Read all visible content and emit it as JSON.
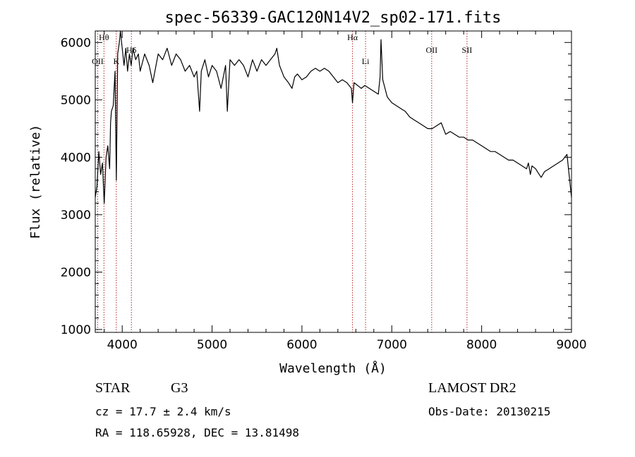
{
  "chart_data": {
    "type": "line",
    "title": "spec-56339-GAC120N14V2_sp02-171.fits",
    "xlabel": "Wavelength (Å)",
    "ylabel": "Flux (relative)",
    "xlim": [
      3700,
      9000
    ],
    "ylim": [
      950,
      6200
    ],
    "x_ticks": [
      4000,
      5000,
      6000,
      7000,
      8000,
      9000
    ],
    "y_ticks": [
      1000,
      2000,
      3000,
      4000,
      5000,
      6000
    ],
    "grid": false,
    "series": [
      {
        "color": "#000000",
        "x": [
          3700,
          3720,
          3740,
          3760,
          3780,
          3800,
          3820,
          3840,
          3860,
          3870,
          3880,
          3900,
          3920,
          3935,
          3950,
          3968,
          3980,
          4000,
          4020,
          4040,
          4060,
          4080,
          4100,
          4120,
          4150,
          4180,
          4200,
          4250,
          4300,
          4340,
          4400,
          4450,
          4500,
          4550,
          4600,
          4650,
          4700,
          4750,
          4800,
          4830,
          4861,
          4880,
          4920,
          4960,
          5000,
          5050,
          5100,
          5150,
          5170,
          5200,
          5250,
          5300,
          5350,
          5400,
          5450,
          5500,
          5550,
          5600,
          5650,
          5700,
          5720,
          5750,
          5800,
          5850,
          5890,
          5920,
          5950,
          6000,
          6050,
          6100,
          6150,
          6200,
          6250,
          6300,
          6350,
          6400,
          6450,
          6500,
          6550,
          6563,
          6580,
          6620,
          6660,
          6700,
          6750,
          6800,
          6850,
          6870,
          6880,
          6900,
          6950,
          7000,
          7050,
          7100,
          7150,
          7200,
          7250,
          7300,
          7350,
          7400,
          7450,
          7500,
          7550,
          7600,
          7650,
          7700,
          7750,
          7800,
          7850,
          7900,
          7950,
          8000,
          8050,
          8100,
          8150,
          8200,
          8250,
          8300,
          8350,
          8400,
          8450,
          8500,
          8520,
          8542,
          8560,
          8600,
          8620,
          8662,
          8700,
          8750,
          8800,
          8850,
          8900,
          8950,
          9000
        ],
        "y": [
          3300,
          3500,
          4100,
          3700,
          3900,
          3200,
          4000,
          4200,
          3800,
          4600,
          4800,
          4900,
          5500,
          3600,
          5800,
          6000,
          6200,
          5900,
          5600,
          5900,
          5500,
          5800,
          5600,
          5900,
          5700,
          5800,
          5500,
          5800,
          5600,
          5300,
          5800,
          5700,
          5900,
          5600,
          5800,
          5700,
          5500,
          5600,
          5400,
          5500,
          4800,
          5500,
          5700,
          5400,
          5600,
          5500,
          5200,
          5600,
          4800,
          5700,
          5600,
          5700,
          5600,
          5400,
          5700,
          5500,
          5700,
          5600,
          5700,
          5800,
          5900,
          5600,
          5400,
          5300,
          5200,
          5400,
          5450,
          5350,
          5400,
          5500,
          5550,
          5500,
          5550,
          5500,
          5400,
          5300,
          5350,
          5300,
          5200,
          4950,
          5300,
          5250,
          5200,
          5250,
          5200,
          5150,
          5100,
          5400,
          6050,
          5350,
          5050,
          4950,
          4900,
          4850,
          4800,
          4700,
          4650,
          4600,
          4550,
          4500,
          4500,
          4550,
          4600,
          4400,
          4450,
          4400,
          4350,
          4350,
          4300,
          4300,
          4250,
          4200,
          4150,
          4100,
          4100,
          4050,
          4000,
          3950,
          3950,
          3900,
          3850,
          3800,
          3900,
          3700,
          3850,
          3800,
          3750,
          3650,
          3750,
          3800,
          3850,
          3900,
          3950,
          4050,
          3300
        ]
      }
    ],
    "line_markers": [
      {
        "label": "OII",
        "x": 3727
      },
      {
        "label": "Hθ",
        "x": 3797
      },
      {
        "label": "K",
        "x": 3934
      },
      {
        "label": "Hδ",
        "x": 4102
      },
      {
        "label": "Hα",
        "x": 6563
      },
      {
        "label": "Li",
        "x": 6708
      },
      {
        "label": "OII",
        "x": 7444
      },
      {
        "label": "SII",
        "x": 7837
      }
    ],
    "marker_color": "#b22222"
  },
  "info": {
    "class": "STAR",
    "subclass": "G3",
    "survey": "LAMOST DR2",
    "cz": "cz = 17.7 ± 2.4 km/s",
    "obs_date": "Obs-Date: 20130215",
    "coords": "RA = 118.65928, DEC =  13.81498"
  }
}
